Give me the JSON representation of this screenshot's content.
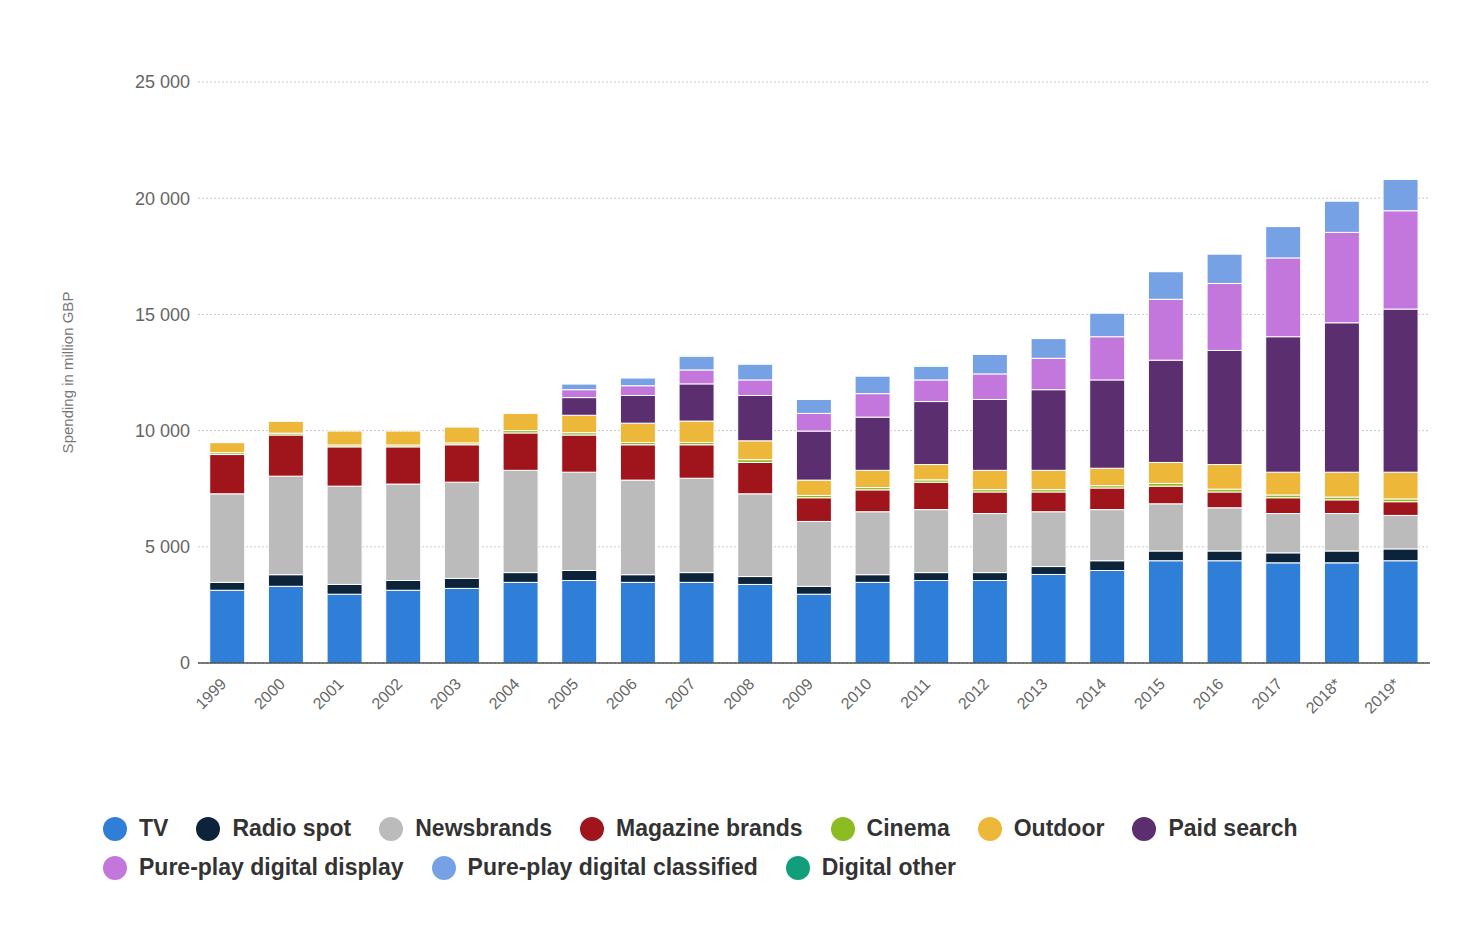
{
  "chart_data": {
    "type": "bar",
    "stacked": true,
    "grid": true,
    "legend": "bottom",
    "y_label": "Spending in million GBP",
    "categories": [
      "1999",
      "2000",
      "2001",
      "2002",
      "2003",
      "2004",
      "2005",
      "2006",
      "2007",
      "2008",
      "2009",
      "2010",
      "2011",
      "2012",
      "2013",
      "2014",
      "2015",
      "2016",
      "2017",
      "2018*",
      "2019*"
    ],
    "ylim": [
      0,
      25000
    ],
    "yticks": [
      0,
      {
        "value": 5000,
        "label": "5 000"
      },
      {
        "value": 10000,
        "label": "10 000"
      },
      {
        "value": 15000,
        "label": "15 000"
      },
      {
        "value": 20000,
        "label": "20 000"
      },
      {
        "value": 25000,
        "label": "25 000"
      }
    ],
    "series": [
      {
        "name": "TV",
        "color": "#2f7ed8",
        "values": [
          3130,
          3300,
          2960,
          3130,
          3210,
          3470,
          3550,
          3470,
          3470,
          3380,
          2960,
          3470,
          3550,
          3550,
          3810,
          3980,
          4400,
          4400,
          4310,
          4310,
          4400
        ]
      },
      {
        "name": "Radio spot",
        "color": "#0d233a",
        "values": [
          340,
          500,
          420,
          420,
          430,
          420,
          430,
          330,
          420,
          340,
          340,
          330,
          340,
          340,
          340,
          420,
          420,
          420,
          430,
          510,
          510
        ]
      },
      {
        "name": "Newsbrands",
        "color": "#bbbbbb",
        "values": [
          3810,
          4240,
          4230,
          4150,
          4140,
          4400,
          4230,
          4070,
          4060,
          3560,
          2790,
          2710,
          2710,
          2540,
          2360,
          2200,
          2030,
          1860,
          1690,
          1610,
          1440
        ]
      },
      {
        "name": "Magazine brands",
        "color": "#a0151b",
        "values": [
          1690,
          1770,
          1690,
          1600,
          1610,
          1610,
          1600,
          1520,
          1440,
          1350,
          1020,
          940,
          1180,
          930,
          850,
          930,
          760,
          680,
          680,
          590,
          590
        ]
      },
      {
        "name": "Cinema",
        "color": "#8bbc21",
        "values": [
          80,
          80,
          80,
          80,
          80,
          100,
          100,
          100,
          100,
          120,
          100,
          100,
          100,
          100,
          100,
          100,
          120,
          120,
          120,
          120,
          120
        ]
      },
      {
        "name": "Outdoor",
        "color": "#edb73a",
        "values": [
          430,
          510,
          600,
          600,
          680,
          740,
          750,
          830,
          920,
          810,
          660,
          740,
          660,
          830,
          830,
          750,
          900,
          1060,
          980,
          1070,
          1150
        ]
      },
      {
        "name": "Paid search",
        "color": "#5a2e6f",
        "values": [
          0,
          0,
          0,
          0,
          0,
          0,
          760,
          1190,
          1600,
          1950,
          2110,
          2290,
          2710,
          3050,
          3470,
          3800,
          4400,
          4910,
          5830,
          6430,
          7020
        ]
      },
      {
        "name": "Pure-play digital display",
        "color": "#c377dc",
        "values": [
          0,
          0,
          0,
          0,
          0,
          0,
          340,
          420,
          600,
          670,
          760,
          1010,
          930,
          1100,
          1350,
          1860,
          2620,
          2880,
          3390,
          3890,
          4230
        ]
      },
      {
        "name": "Pure-play digital classified",
        "color": "#77a1e5",
        "values": [
          0,
          0,
          0,
          0,
          0,
          0,
          250,
          340,
          590,
          680,
          600,
          760,
          590,
          840,
          850,
          1020,
          1190,
          1270,
          1350,
          1350,
          1350
        ]
      },
      {
        "name": "Digital other",
        "color": "#119f7b",
        "values": [
          0,
          0,
          0,
          0,
          0,
          0,
          20,
          20,
          20,
          20,
          20,
          20,
          20,
          20,
          20,
          20,
          20,
          20,
          20,
          20,
          20
        ]
      }
    ]
  }
}
